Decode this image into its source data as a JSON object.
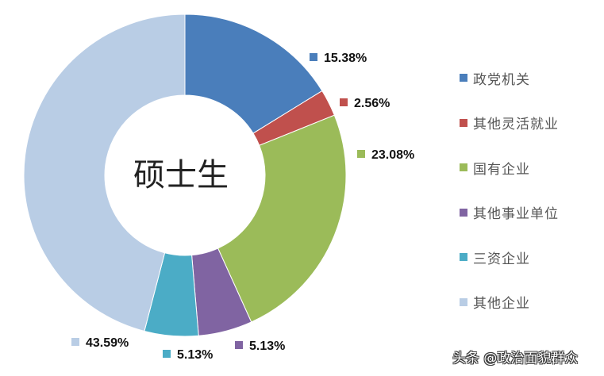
{
  "chart_data": {
    "type": "pie",
    "subtype": "donut",
    "title": "",
    "center_label": "硕士生",
    "categories": [
      "政党机关",
      "其他灵活就业",
      "国有企业",
      "其他事业单位",
      "三资企业",
      "其他企业"
    ],
    "values": [
      15.38,
      2.56,
      23.08,
      5.13,
      5.13,
      43.59
    ],
    "labels": [
      "15.38%",
      "2.56%",
      "23.08%",
      "5.13%",
      "5.13%",
      "43.59%"
    ],
    "colors": [
      "#4a7ebb",
      "#c0504d",
      "#9bbb59",
      "#8064a2",
      "#4bacc6",
      "#b9cde5"
    ],
    "start_angle": "12 o'clock",
    "direction": "clockwise",
    "legend_position": "right"
  },
  "legend": {
    "items": [
      {
        "label": "政党机关",
        "color": "#4a7ebb"
      },
      {
        "label": "其他灵活就业",
        "color": "#c0504d"
      },
      {
        "label": "国有企业",
        "color": "#9bbb59"
      },
      {
        "label": "其他事业单位",
        "color": "#8064a2"
      },
      {
        "label": "三资企业",
        "color": "#4bacc6"
      },
      {
        "label": "其他企业",
        "color": "#b9cde5"
      }
    ]
  },
  "watermark": "头条 @政治面貌群众"
}
